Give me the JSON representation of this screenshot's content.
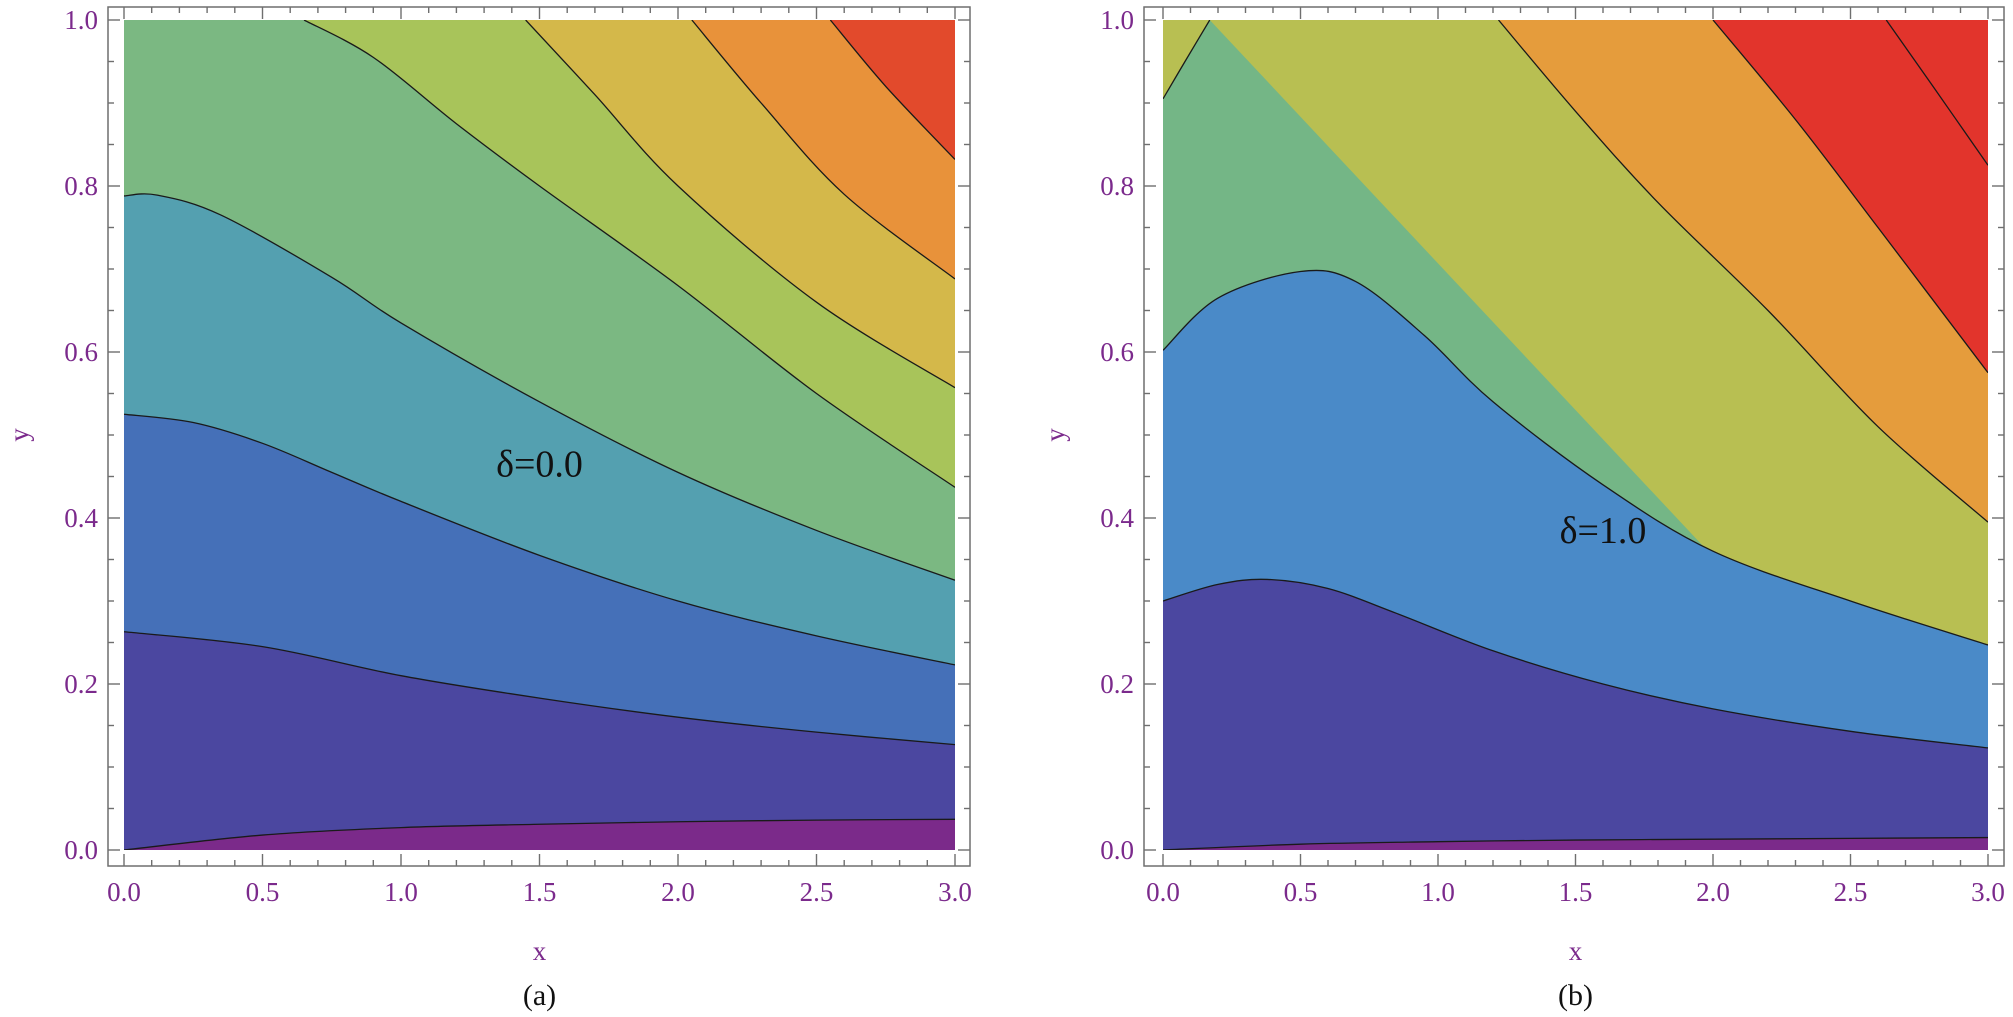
{
  "chart_data": [
    {
      "type": "contour",
      "panel_label": "(a)",
      "annotation": "δ=0.0",
      "annotation_pos": {
        "x": 1.5,
        "y": 0.45
      },
      "xlabel": "x",
      "ylabel": "y",
      "xlim": [
        0,
        3
      ],
      "ylim": [
        0,
        1
      ],
      "xticks": [
        0.0,
        0.5,
        1.0,
        1.5,
        2.0,
        2.5,
        3.0
      ],
      "xtick_labels": [
        "0.0",
        "0.5",
        "1.0",
        "1.5",
        "2.0",
        "2.5",
        "3.0"
      ],
      "yticks": [
        0.0,
        0.2,
        0.4,
        0.6,
        0.8,
        1.0
      ],
      "ytick_labels": [
        "0.0",
        "0.2",
        "0.4",
        "0.6",
        "0.8",
        "1.0"
      ],
      "band_colors": [
        "#7b2a8a",
        "#4b47a0",
        "#4570b8",
        "#54a0b0",
        "#7bb882",
        "#a8c45a",
        "#d4b84a",
        "#e8923a",
        "#e24a2c"
      ],
      "contours": [
        [
          [
            0,
            0.0
          ],
          [
            0.5,
            0.018
          ],
          [
            1.0,
            0.027
          ],
          [
            1.5,
            0.031
          ],
          [
            2.0,
            0.034
          ],
          [
            2.5,
            0.036
          ],
          [
            3.0,
            0.037
          ]
        ],
        [
          [
            0,
            0.263
          ],
          [
            0.5,
            0.245
          ],
          [
            1.0,
            0.21
          ],
          [
            1.5,
            0.183
          ],
          [
            2.0,
            0.16
          ],
          [
            2.5,
            0.142
          ],
          [
            3.0,
            0.127
          ]
        ],
        [
          [
            0,
            0.525
          ],
          [
            0.25,
            0.515
          ],
          [
            0.5,
            0.49
          ],
          [
            0.75,
            0.455
          ],
          [
            1.0,
            0.42
          ],
          [
            1.5,
            0.355
          ],
          [
            2.0,
            0.3
          ],
          [
            2.5,
            0.258
          ],
          [
            3.0,
            0.223
          ]
        ],
        [
          [
            0,
            0.788
          ],
          [
            0.12,
            0.789
          ],
          [
            0.35,
            0.765
          ],
          [
            0.75,
            0.69
          ],
          [
            1.0,
            0.635
          ],
          [
            1.5,
            0.54
          ],
          [
            2.0,
            0.455
          ],
          [
            2.5,
            0.385
          ],
          [
            3.0,
            0.325
          ]
        ],
        [
          [
            0.65,
            1.0
          ],
          [
            0.9,
            0.955
          ],
          [
            1.2,
            0.875
          ],
          [
            1.5,
            0.8
          ],
          [
            2.0,
            0.68
          ],
          [
            2.5,
            0.55
          ],
          [
            3.0,
            0.437
          ]
        ],
        [
          [
            1.45,
            1.0
          ],
          [
            1.7,
            0.91
          ],
          [
            2.0,
            0.8
          ],
          [
            2.5,
            0.66
          ],
          [
            3.0,
            0.557
          ]
        ],
        [
          [
            2.05,
            1.0
          ],
          [
            2.3,
            0.9
          ],
          [
            2.6,
            0.79
          ],
          [
            3.0,
            0.688
          ]
        ],
        [
          [
            2.55,
            1.0
          ],
          [
            2.75,
            0.92
          ],
          [
            3.0,
            0.832
          ]
        ]
      ]
    },
    {
      "type": "contour",
      "panel_label": "(b)",
      "annotation": "δ=1.0",
      "annotation_pos": {
        "x": 1.6,
        "y": 0.37
      },
      "xlabel": "x",
      "ylabel": "y",
      "xlim": [
        0,
        3
      ],
      "ylim": [
        0,
        1
      ],
      "xticks": [
        0.0,
        0.5,
        1.0,
        1.5,
        2.0,
        2.5,
        3.0
      ],
      "xtick_labels": [
        "0.0",
        "0.5",
        "1.0",
        "1.5",
        "2.0",
        "2.5",
        "3.0"
      ],
      "yticks": [
        0.0,
        0.2,
        0.4,
        0.6,
        0.8,
        1.0
      ],
      "ytick_labels": [
        "0.0",
        "0.2",
        "0.4",
        "0.6",
        "0.8",
        "1.0"
      ],
      "band_colors": [
        "#7b2a8a",
        "#4b47a0",
        "#4a8ac8",
        "#74b686",
        "#b8bf52",
        "#e59c3c",
        "#e2342c"
      ],
      "contours": [
        [
          [
            0,
            0.0
          ],
          [
            0.5,
            0.007
          ],
          [
            1.0,
            0.01
          ],
          [
            1.5,
            0.012
          ],
          [
            2.0,
            0.013
          ],
          [
            2.5,
            0.014
          ],
          [
            3.0,
            0.015
          ]
        ],
        [
          [
            0,
            0.3
          ],
          [
            0.2,
            0.32
          ],
          [
            0.38,
            0.326
          ],
          [
            0.6,
            0.315
          ],
          [
            0.85,
            0.285
          ],
          [
            1.2,
            0.24
          ],
          [
            1.6,
            0.2
          ],
          [
            2.0,
            0.17
          ],
          [
            2.5,
            0.143
          ],
          [
            3.0,
            0.123
          ]
        ],
        [
          [
            0,
            0.602
          ],
          [
            0.2,
            0.665
          ],
          [
            0.5,
            0.697
          ],
          [
            0.7,
            0.685
          ],
          [
            0.95,
            0.62
          ],
          [
            1.2,
            0.54
          ],
          [
            1.6,
            0.44
          ],
          [
            2.0,
            0.36
          ],
          [
            2.5,
            0.3
          ],
          [
            3.0,
            0.247
          ]
        ],
        [
          [
            0,
            0.905
          ],
          [
            0.08,
            0.95
          ],
          [
            0.17,
            1.0
          ]
        ],
        [
          [
            1.22,
            1.0
          ],
          [
            1.5,
            0.89
          ],
          [
            1.8,
            0.78
          ],
          [
            2.2,
            0.65
          ],
          [
            2.6,
            0.51
          ],
          [
            3.0,
            0.395
          ]
        ],
        [
          [
            2.0,
            1.0
          ],
          [
            2.3,
            0.88
          ],
          [
            2.6,
            0.75
          ],
          [
            3.0,
            0.575
          ]
        ],
        [
          [
            2.63,
            1.0
          ],
          [
            2.8,
            0.92
          ],
          [
            3.0,
            0.825
          ]
        ]
      ]
    }
  ]
}
